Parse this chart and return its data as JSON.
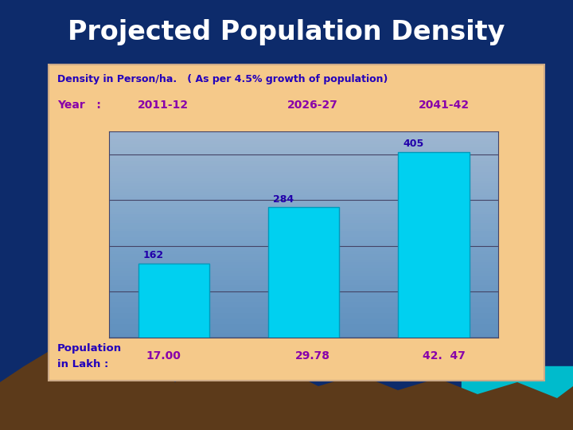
{
  "title": "Projected Population Density",
  "subtitle": "Density in Person/ha.   ( As per 4.5% growth of population)",
  "year_label": "Year   :",
  "years": [
    "2011-12",
    "2026-27",
    "2041-42"
  ],
  "values": [
    162,
    284,
    405
  ],
  "pop_label_line1": "Population",
  "pop_label_line2": "in Lakh :",
  "pop_values": [
    "17.00",
    "29.78",
    "42.  47"
  ],
  "bar_color": "#00D0F0",
  "bg_panel": "#F5C98A",
  "chart_bg_top": "#C8C8DC",
  "chart_bg_bottom": "#9090B0",
  "title_color": "#FFFFFF",
  "subtitle_color": "#2200BB",
  "year_color": "#8800AA",
  "value_label_color": "#2200AA",
  "pop_label_color": "#2200BB",
  "outer_bg": "#0D2B6B",
  "ylim": [
    0,
    450
  ],
  "bar_width": 0.55
}
